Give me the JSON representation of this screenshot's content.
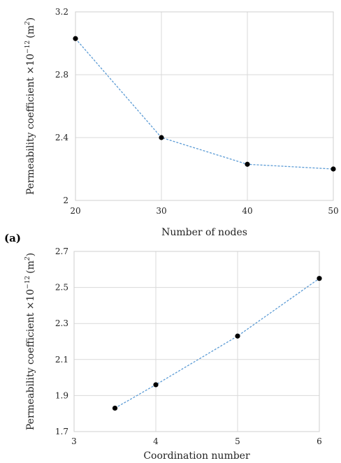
{
  "colors": {
    "series": "#5b9bd5",
    "marker": "#000000",
    "grid": "#d9d9d9"
  },
  "chart_data": [
    {
      "type": "line",
      "panel_label": "(a)",
      "xlabel": "Number of nodes",
      "ylabel": "Permeability coefficient ×10",
      "ylabel_exp": "−12",
      "ylabel_unit": "(m",
      "ylabel_unit_exp": "2",
      "ylabel_close": ")",
      "x": [
        20,
        30,
        40,
        50
      ],
      "y": [
        3.03,
        2.4,
        2.23,
        2.2
      ],
      "xlim": [
        20,
        50
      ],
      "ylim": [
        2,
        3.2
      ],
      "xticks": [
        "20",
        "30",
        "40",
        "50"
      ],
      "yticks": [
        "2",
        "2.4",
        "2.8",
        "3.2"
      ],
      "grid": true
    },
    {
      "type": "line",
      "xlabel": "Coordination number",
      "ylabel": "Permeability coefficient ×10",
      "ylabel_exp": "−12",
      "ylabel_unit": "(m",
      "ylabel_unit_exp": "2",
      "ylabel_close": ")",
      "x": [
        3.5,
        4,
        5,
        6
      ],
      "y": [
        1.83,
        1.96,
        2.23,
        2.55
      ],
      "xlim": [
        3,
        6
      ],
      "ylim": [
        1.7,
        2.7
      ],
      "xticks": [
        "3",
        "4",
        "5",
        "6"
      ],
      "yticks": [
        "1.7",
        "1.9",
        "2.1",
        "2.3",
        "2.5",
        "2.7"
      ],
      "grid": true
    }
  ]
}
